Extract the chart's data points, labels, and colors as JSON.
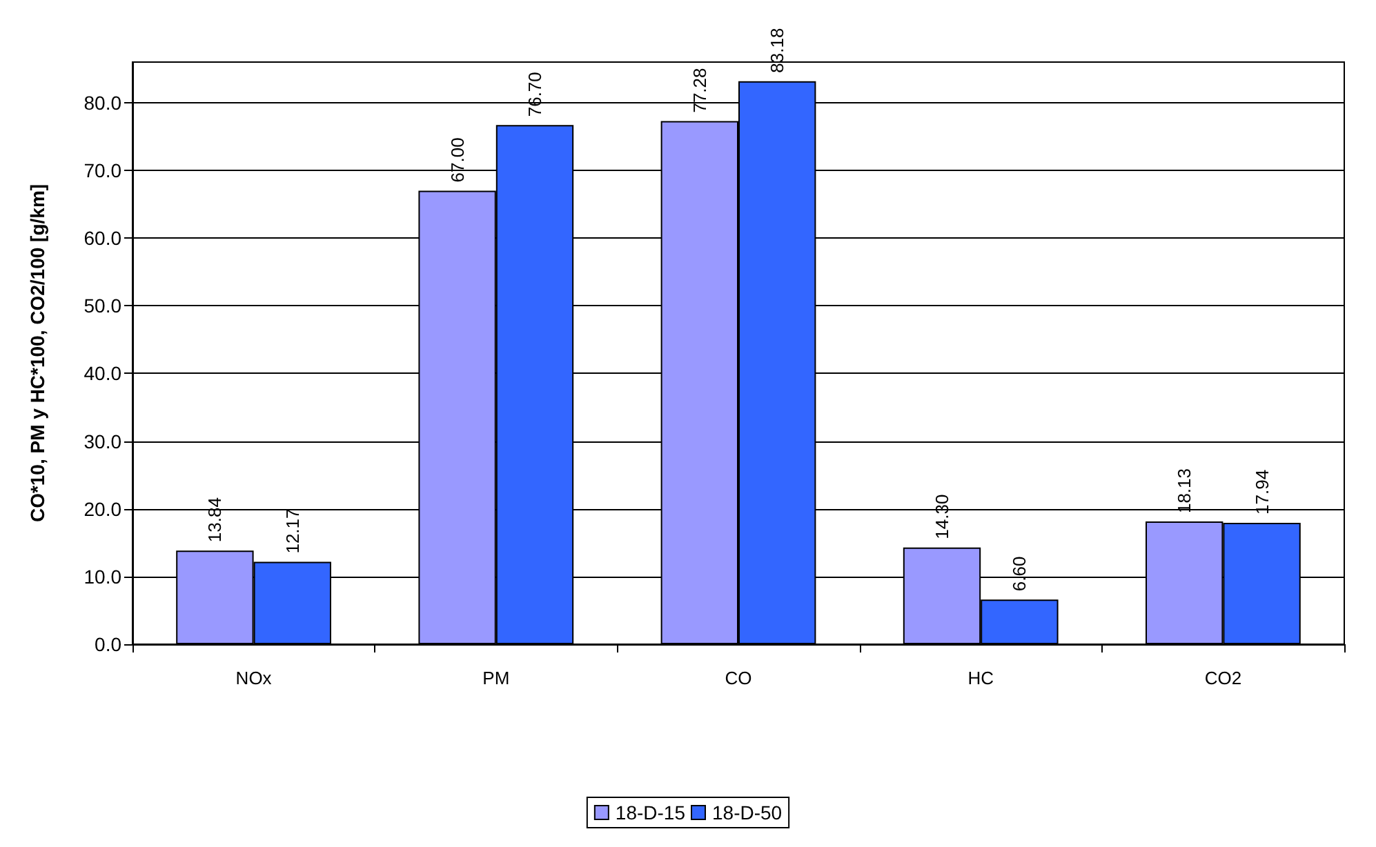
{
  "chart_data": {
    "type": "bar",
    "ylabel": "CO*10, PM y HC*100, CO2/100 [g/km]",
    "categories": [
      "NOx",
      "PM",
      "CO",
      "HC",
      "CO2"
    ],
    "series": [
      {
        "name": "18-D-15",
        "color": "#9999ff",
        "values": [
          13.84,
          67.0,
          77.28,
          14.3,
          18.13
        ],
        "value_labels": [
          "13.84",
          "67.00",
          "77.28",
          "14.30",
          "18.13"
        ]
      },
      {
        "name": "18-D-50",
        "color": "#3366ff",
        "values": [
          12.17,
          76.7,
          83.18,
          6.6,
          17.94
        ],
        "value_labels": [
          "12.17",
          "76.70",
          "83.18",
          "6.60",
          "17.94"
        ]
      }
    ],
    "ylim": [
      0,
      86
    ],
    "yticks": [
      {
        "value": 0,
        "label": "0.0"
      },
      {
        "value": 10,
        "label": "10.0"
      },
      {
        "value": 20,
        "label": "20.0"
      },
      {
        "value": 30,
        "label": "30.0"
      },
      {
        "value": 40,
        "label": "40.0"
      },
      {
        "value": 50,
        "label": "50.0"
      },
      {
        "value": 60,
        "label": "60.0"
      },
      {
        "value": 70,
        "label": "70.0"
      },
      {
        "value": 80,
        "label": "80.0"
      }
    ],
    "grid": "y",
    "legend": "bottom"
  }
}
